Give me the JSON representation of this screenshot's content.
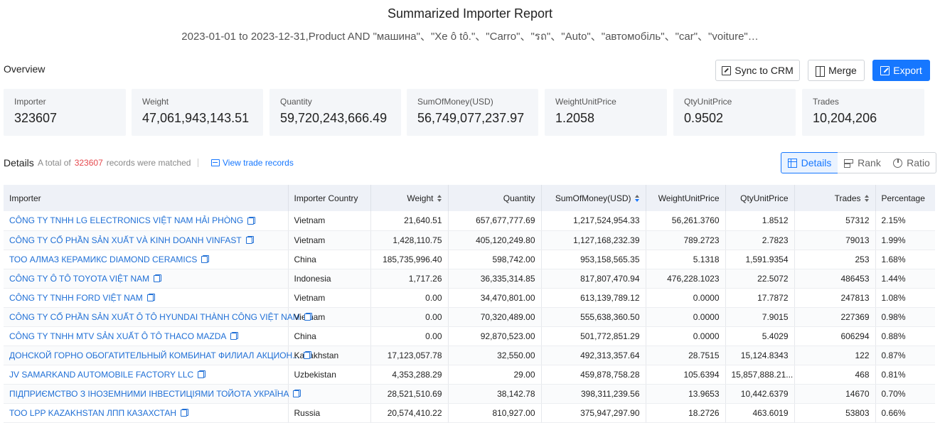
{
  "header": {
    "title": "Summarized Importer Report",
    "subtitle": "2023-01-01 to 2023-12-31,Product AND \"машина\"、\"Xe ô tô.\"、\"Carro\"、\"รถ\"、\"Auto\"、\"автомобіль\"、\"car\"、\"voiture\"…"
  },
  "overview": {
    "label": "Overview",
    "buttons": {
      "sync": "Sync to CRM",
      "merge": "Merge",
      "export": "Export"
    },
    "cards": [
      {
        "label": "Importer",
        "value": "323607"
      },
      {
        "label": "Weight",
        "value": "47,061,943,143.51"
      },
      {
        "label": "Quantity",
        "value": "59,720,243,666.49"
      },
      {
        "label": "SumOfMoney(USD)",
        "value": "56,749,077,237.97"
      },
      {
        "label": "WeightUnitPrice",
        "value": "1.2058"
      },
      {
        "label": "QtyUnitPrice",
        "value": "0.9502"
      },
      {
        "label": "Trades",
        "value": "10,204,206"
      }
    ]
  },
  "details": {
    "label": "Details",
    "total_prefix": "A total of",
    "total_count": "323607",
    "total_suffix": "records were matched",
    "view_link": "View trade records",
    "views": {
      "details": "Details",
      "rank": "Rank",
      "ratio": "Ratio"
    }
  },
  "table": {
    "columns": {
      "importer": "Importer",
      "country": "Importer Country",
      "weight": "Weight",
      "quantity": "Quantity",
      "money": "SumOfMoney(USD)",
      "wup": "WeightUnitPrice",
      "qup": "QtyUnitPrice",
      "trades": "Trades",
      "pct": "Percentage"
    },
    "rows": [
      {
        "importer": "CÔNG TY TNHH LG ELECTRONICS VIỆT NAM HẢI PHÒNG",
        "country": "Vietnam",
        "weight": "21,640.51",
        "quantity": "657,677,777.69",
        "money": "1,217,524,954.33",
        "wup": "56,261.3760",
        "qup": "1.8512",
        "trades": "57312",
        "pct": "2.15%"
      },
      {
        "importer": "CÔNG TY CỔ PHẦN SẢN XUẤT VÀ KINH DOANH VINFAST",
        "country": "Vietnam",
        "weight": "1,428,110.75",
        "quantity": "405,120,249.80",
        "money": "1,127,168,232.39",
        "wup": "789.2723",
        "qup": "2.7823",
        "trades": "79013",
        "pct": "1.99%"
      },
      {
        "importer": "ТОО АЛМАЗ КЕРАМИКС DIAMOND CERAMICS",
        "country": "China",
        "weight": "185,735,996.40",
        "quantity": "598,742.00",
        "money": "953,158,565.35",
        "wup": "5.1318",
        "qup": "1,591.9354",
        "trades": "253",
        "pct": "1.68%"
      },
      {
        "importer": "CÔNG TY Ô TÔ TOYOTA VIỆT NAM",
        "country": "Indonesia",
        "weight": "1,717.26",
        "quantity": "36,335,314.85",
        "money": "817,807,470.94",
        "wup": "476,228.1023",
        "qup": "22.5072",
        "trades": "486453",
        "pct": "1.44%"
      },
      {
        "importer": "CÔNG TY TNHH FORD VIỆT NAM",
        "country": "Vietnam",
        "weight": "0.00",
        "quantity": "34,470,801.00",
        "money": "613,139,789.12",
        "wup": "0.0000",
        "qup": "17.7872",
        "trades": "247813",
        "pct": "1.08%"
      },
      {
        "importer": "CÔNG TY CỔ PHẦN SẢN XUẤT Ô TÔ HYUNDAI THÀNH CÔNG VIỆT NAM",
        "country": "Vietnam",
        "weight": "0.00",
        "quantity": "70,320,489.00",
        "money": "555,638,360.50",
        "wup": "0.0000",
        "qup": "7.9015",
        "trades": "227369",
        "pct": "0.98%"
      },
      {
        "importer": "CÔNG TY TNHH MTV SẢN XUẤT Ô TÔ THACO MAZDA",
        "country": "China",
        "weight": "0.00",
        "quantity": "92,870,523.00",
        "money": "501,772,851.29",
        "wup": "0.0000",
        "qup": "5.4029",
        "trades": "606294",
        "pct": "0.88%"
      },
      {
        "importer": "ДОНСКОЙ ГОРНО ОБОГАТИТЕЛЬНЫЙ КОМБИНАТ ФИЛИАЛ АКЦИОН...",
        "country": "Kazakhstan",
        "weight": "17,123,057.78",
        "quantity": "32,550.00",
        "money": "492,313,357.64",
        "wup": "28.7515",
        "qup": "15,124.8343",
        "trades": "122",
        "pct": "0.87%"
      },
      {
        "importer": "JV SAMARKAND AUTOMOBILE FACTORY LLC",
        "country": "Uzbekistan",
        "weight": "4,353,288.29",
        "quantity": "29.00",
        "money": "459,878,758.28",
        "wup": "105.6394",
        "qup": "15,857,888.21...",
        "trades": "468",
        "pct": "0.81%"
      },
      {
        "importer": "ПІДПРИЄМСТВО З ІНОЗЕМНИМИ ІНВЕСТИЦІЯМИ ТОЙОТА УКРАЇНА",
        "country": "-",
        "weight": "28,521,510.69",
        "quantity": "38,142.78",
        "money": "398,311,239.56",
        "wup": "13.9653",
        "qup": "10,442.6379",
        "trades": "14670",
        "pct": "0.70%"
      },
      {
        "importer": "ТОО LPP KAZAKHSTAN ЛПП КАЗАХСТАН",
        "country": "Russia",
        "weight": "20,574,410.22",
        "quantity": "810,927.00",
        "money": "375,947,297.90",
        "wup": "18.2726",
        "qup": "463.6019",
        "trades": "53803",
        "pct": "0.66%"
      }
    ]
  },
  "colors": {
    "accent": "#1677ff",
    "link": "#1f6fd6",
    "count": "#e5484d",
    "card_bg": "#f4f6f9",
    "header_bg": "#eef1f7"
  },
  "icons": {
    "sync": "sync-crm-icon",
    "merge": "merge-icon",
    "export": "export-icon",
    "view": "view-records-icon",
    "copy": "copy-icon",
    "details": "table-icon",
    "rank": "rank-icon",
    "ratio": "pie-icon"
  }
}
